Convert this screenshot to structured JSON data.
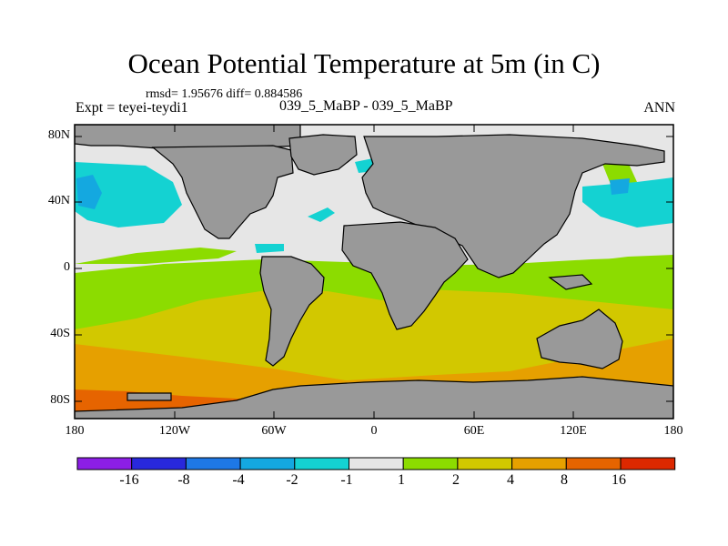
{
  "figure": {
    "title": "Ocean Potential Temperature at 5m (in C)",
    "stats_line": "rmsd= 1.95676 diff= 0.884586",
    "experiment": "Expt = teyei-teydi1",
    "case_label": "039_5_MaBP - 039_5_MaBP",
    "season": "ANN"
  },
  "axes": {
    "lat_labels": [
      "80N",
      "40N",
      "0",
      "40S",
      "80S"
    ],
    "lon_labels": [
      "180",
      "120W",
      "60W",
      "0",
      "60E",
      "120E",
      "180"
    ]
  },
  "colorbar": {
    "labels": [
      "-16",
      "-8",
      "-4",
      "-2",
      "-1",
      "1",
      "2",
      "4",
      "8",
      "16"
    ],
    "colors": [
      "#8c1ee6",
      "#2828dc",
      "#1e78e6",
      "#14a8e0",
      "#14d2d2",
      "#e6e6e6",
      "#8cdc00",
      "#d2c800",
      "#e6a000",
      "#e66400",
      "#dc2800"
    ]
  },
  "colors": {
    "land": "#999999",
    "ocean_neutral": "#e6e6e6",
    "green": "#8cdc00",
    "yellow": "#d2c800",
    "orange": "#e6a000",
    "dark_orange": "#e66400",
    "cyan": "#14d2d2",
    "light_blue": "#14a8e0"
  }
}
